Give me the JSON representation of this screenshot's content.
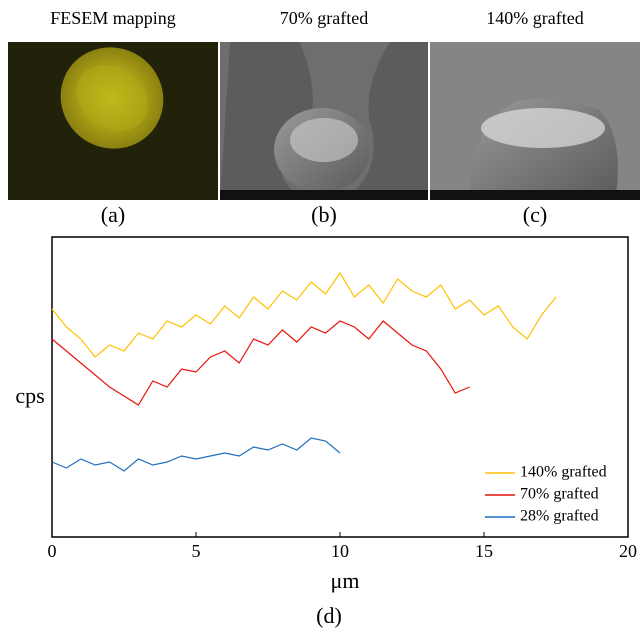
{
  "panels": {
    "a": {
      "title": "FESEM mapping",
      "label": "(a)"
    },
    "b": {
      "title": "70% grafted",
      "label": "(b)"
    },
    "c": {
      "title": "140% grafted",
      "label": "(c)"
    }
  },
  "chart_data": {
    "type": "line",
    "label": "(d)",
    "x_label": "μm",
    "y_label": "cps",
    "xlim": [
      0,
      20
    ],
    "xticks": [
      0,
      5,
      10,
      15,
      20
    ],
    "ylim": [
      0,
      100
    ],
    "grid": false,
    "legend": "lower right",
    "series": [
      {
        "name": "140% grafted",
        "color": "#ffc000",
        "x": [
          0,
          0.5,
          1,
          1.5,
          2,
          2.5,
          3,
          3.5,
          4,
          4.5,
          5,
          5.5,
          6,
          6.5,
          7,
          7.5,
          8,
          8.5,
          9,
          9.5,
          10,
          10.5,
          11,
          11.5,
          12,
          12.5,
          13,
          13.5,
          14,
          14.5,
          15,
          15.5,
          16,
          16.5,
          17,
          17.5
        ],
        "values": [
          76,
          70,
          66,
          60,
          64,
          62,
          68,
          66,
          72,
          70,
          74,
          71,
          77,
          73,
          80,
          76,
          82,
          79,
          85,
          81,
          88,
          80,
          84,
          78,
          86,
          82,
          80,
          84,
          76,
          79,
          74,
          77,
          70,
          66,
          74,
          80
        ]
      },
      {
        "name": "70% grafted",
        "color": "#e8140c",
        "x": [
          0,
          0.5,
          1,
          1.5,
          2,
          2.5,
          3,
          3.5,
          4,
          4.5,
          5,
          5.5,
          6,
          6.5,
          7,
          7.5,
          8,
          8.5,
          9,
          9.5,
          10,
          10.5,
          11,
          11.5,
          12,
          12.5,
          13,
          13.5,
          14,
          14.5
        ],
        "values": [
          66,
          62,
          58,
          54,
          50,
          47,
          44,
          52,
          50,
          56,
          55,
          60,
          62,
          58,
          66,
          64,
          69,
          65,
          70,
          68,
          72,
          70,
          66,
          72,
          68,
          64,
          62,
          56,
          48,
          50
        ]
      },
      {
        "name": "28% grafted",
        "color": "#1f6fbf",
        "x": [
          0,
          0.5,
          1,
          1.5,
          2,
          2.5,
          3,
          3.5,
          4,
          4.5,
          5,
          5.5,
          6,
          6.5,
          7,
          7.5,
          8,
          8.5,
          9,
          9.5,
          10
        ],
        "values": [
          25,
          23,
          26,
          24,
          25,
          22,
          26,
          24,
          25,
          27,
          26,
          27,
          28,
          27,
          30,
          29,
          31,
          29,
          33,
          32,
          28
        ]
      }
    ]
  }
}
